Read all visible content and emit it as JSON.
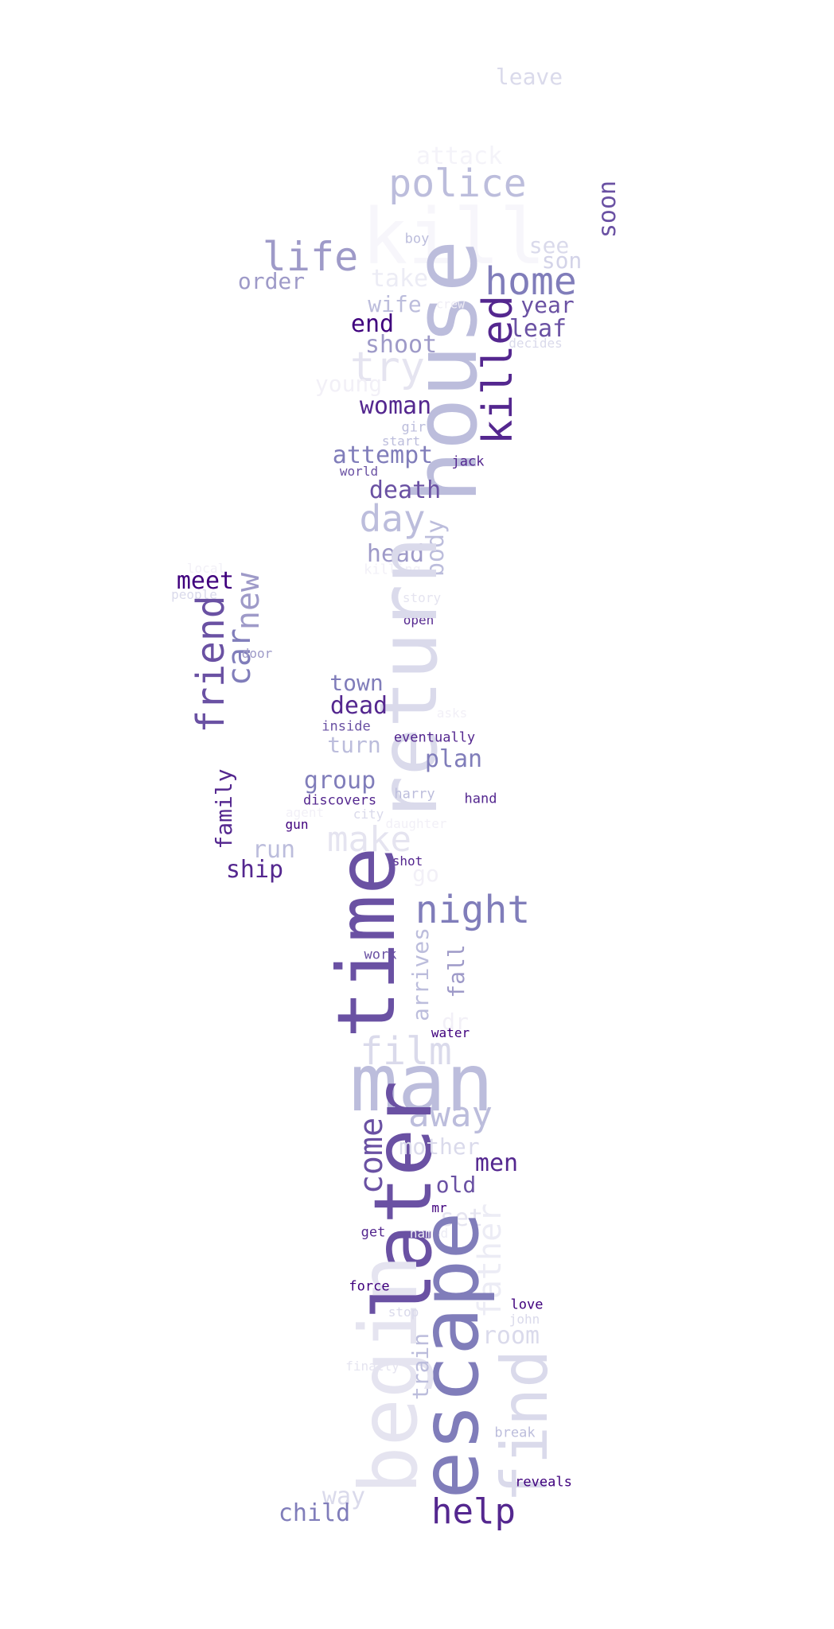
{
  "words": [
    {
      "text": "leave",
      "color": "#dadaeb"
    },
    {
      "text": "attack",
      "color": "#f4f3f9"
    },
    {
      "text": "police",
      "color": "#bcbddc"
    },
    {
      "text": "kill",
      "color": "#f7f6fb"
    },
    {
      "text": "soon",
      "color": "#6a51a3"
    },
    {
      "text": "boy",
      "color": "#bcbddc"
    },
    {
      "text": "see",
      "color": "#dadaeb"
    },
    {
      "text": "son",
      "color": "#d3d3e8"
    },
    {
      "text": "life",
      "color": "#9e9ac8"
    },
    {
      "text": "home",
      "color": "#807dba"
    },
    {
      "text": "house",
      "color": "#bcbddc"
    },
    {
      "text": "order",
      "color": "#9e9ac8"
    },
    {
      "text": "take",
      "color": "#ececf5"
    },
    {
      "text": "year",
      "color": "#6a51a3"
    },
    {
      "text": "wife",
      "color": "#bcbddc"
    },
    {
      "text": "crew",
      "color": "#efedf5"
    },
    {
      "text": "leaf",
      "color": "#6a51a3"
    },
    {
      "text": "end",
      "color": "#3f007d"
    },
    {
      "text": "killed",
      "color": "#54278f"
    },
    {
      "text": "decides",
      "color": "#dadaeb"
    },
    {
      "text": "shoot",
      "color": "#9e9ac8"
    },
    {
      "text": "try",
      "color": "#e5e4f0"
    },
    {
      "text": "young",
      "color": "#f2f0f7"
    },
    {
      "text": "woman",
      "color": "#54278f"
    },
    {
      "text": "girl",
      "color": "#bcbddc"
    },
    {
      "text": "start",
      "color": "#bcbddc"
    },
    {
      "text": "attempt",
      "color": "#807dba"
    },
    {
      "text": "jack",
      "color": "#54278f"
    },
    {
      "text": "world",
      "color": "#6a51a3"
    },
    {
      "text": "death",
      "color": "#6a51a3"
    },
    {
      "text": "day",
      "color": "#bcbddc"
    },
    {
      "text": "head",
      "color": "#9e9ac8"
    },
    {
      "text": "body",
      "color": "#bcbddc"
    },
    {
      "text": "local",
      "color": "#f2f0f7"
    },
    {
      "text": "killing",
      "color": "#f2f0f7"
    },
    {
      "text": "meet",
      "color": "#3f007d"
    },
    {
      "text": "new",
      "color": "#9e9ac8"
    },
    {
      "text": "people",
      "color": "#dadaeb"
    },
    {
      "text": "story",
      "color": "#e5e4f0"
    },
    {
      "text": "open",
      "color": "#54278f"
    },
    {
      "text": "friend",
      "color": "#6a51a3"
    },
    {
      "text": "car",
      "color": "#807dba"
    },
    {
      "text": "door",
      "color": "#9e9ac8"
    },
    {
      "text": "return",
      "color": "#dadaeb"
    },
    {
      "text": "town",
      "color": "#807dba"
    },
    {
      "text": "dead",
      "color": "#54278f"
    },
    {
      "text": "asks",
      "color": "#f2f0f7"
    },
    {
      "text": "inside",
      "color": "#6a51a3"
    },
    {
      "text": "eventually",
      "color": "#54278f"
    },
    {
      "text": "turn",
      "color": "#bcbddc"
    },
    {
      "text": "plan",
      "color": "#807dba"
    },
    {
      "text": "family",
      "color": "#54278f"
    },
    {
      "text": "group",
      "color": "#807dba"
    },
    {
      "text": "harry",
      "color": "#bcbddc"
    },
    {
      "text": "discovers",
      "color": "#54278f"
    },
    {
      "text": "hand",
      "color": "#54278f"
    },
    {
      "text": "agent",
      "color": "#f2f0f7"
    },
    {
      "text": "city",
      "color": "#dadaeb"
    },
    {
      "text": "daughter",
      "color": "#f2f0f7"
    },
    {
      "text": "gun",
      "color": "#3f007d"
    },
    {
      "text": "make",
      "color": "#e5e4f0"
    },
    {
      "text": "run",
      "color": "#bcbddc"
    },
    {
      "text": "ship",
      "color": "#54278f"
    },
    {
      "text": "shot",
      "color": "#54278f"
    },
    {
      "text": "go",
      "color": "#f2f0f7"
    },
    {
      "text": "time",
      "color": "#6a51a3"
    },
    {
      "text": "night",
      "color": "#807dba"
    },
    {
      "text": "work",
      "color": "#6a51a3"
    },
    {
      "text": "arrives",
      "color": "#bcbddc"
    },
    {
      "text": "fall",
      "color": "#9e9ac8"
    },
    {
      "text": "dr",
      "color": "#f2f0f7"
    },
    {
      "text": "film",
      "color": "#dadaeb"
    },
    {
      "text": "water",
      "color": "#3f007d"
    },
    {
      "text": "man",
      "color": "#bcbddc"
    },
    {
      "text": "away",
      "color": "#bcbddc"
    },
    {
      "text": "come",
      "color": "#6a51a3"
    },
    {
      "text": "later",
      "color": "#6a51a3"
    },
    {
      "text": "mother",
      "color": "#dadaeb"
    },
    {
      "text": "men",
      "color": "#54278f"
    },
    {
      "text": "old",
      "color": "#6a51a3"
    },
    {
      "text": "mr",
      "color": "#3f007d"
    },
    {
      "text": "set",
      "color": "#e5e4f0"
    },
    {
      "text": "father",
      "color": "#ececf5"
    },
    {
      "text": "get",
      "color": "#54278f"
    },
    {
      "text": "named",
      "color": "#ececf5"
    },
    {
      "text": "escape",
      "color": "#807dba"
    },
    {
      "text": "begin",
      "color": "#e5e4f0"
    },
    {
      "text": "force",
      "color": "#3f007d"
    },
    {
      "text": "love",
      "color": "#3f007d"
    },
    {
      "text": "stop",
      "color": "#dadaeb"
    },
    {
      "text": "john",
      "color": "#dadaeb"
    },
    {
      "text": "room",
      "color": "#dadaeb"
    },
    {
      "text": "train",
      "color": "#bcbddc"
    },
    {
      "text": "finally",
      "color": "#e5e4f0"
    },
    {
      "text": "find",
      "color": "#dadaeb"
    },
    {
      "text": "break",
      "color": "#bcbddc"
    },
    {
      "text": "reveals",
      "color": "#3f007d"
    },
    {
      "text": "way",
      "color": "#dadaeb"
    },
    {
      "text": "child",
      "color": "#807dba"
    },
    {
      "text": "help",
      "color": "#54278f"
    }
  ]
}
